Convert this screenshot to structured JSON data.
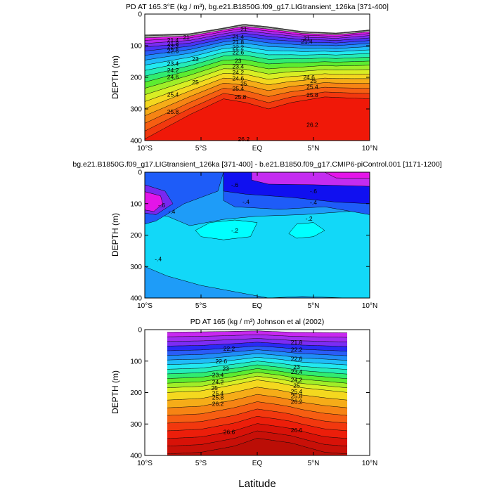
{
  "figure_xlabel": "Latitude",
  "chart_data": [
    {
      "type": "contour",
      "title": "PD AT 165.3°E (kg / m³), bg.e21.B1850G.f09_g17.LIGtransient_126ka [371-400]",
      "ylabel": "DEPTH (m)",
      "xlim": [
        -10,
        10
      ],
      "ylim": [
        0,
        400
      ],
      "data_xlim": [
        -10,
        10
      ],
      "x_ticks": [
        -10,
        -5,
        0,
        5,
        10
      ],
      "x_tick_labels": [
        "10°S",
        "5°S",
        "EQ",
        "5°N",
        "10°N"
      ],
      "y_ticks": [
        0,
        100,
        200,
        300,
        400
      ],
      "y_tick_labels": [
        "0",
        "100",
        "200",
        "300",
        "400"
      ],
      "fill_colors": [
        "#6e6e6e",
        "#a9a9a9",
        "#e015e8",
        "#b028f0",
        "#7c2cf4",
        "#4b33f5",
        "#2a5cf8",
        "#1f8cf8",
        "#1fbcf8",
        "#22e8f0",
        "#24ecb8",
        "#30ec70",
        "#5cec30",
        "#a0ee28",
        "#d8ee24",
        "#f4d81f",
        "#f6ac18",
        "#f68414",
        "#f65e12",
        "#f2380e",
        "#f01808"
      ],
      "contour_labels": [
        {
          "text": "21",
          "lat": -1.2,
          "depth": 48
        },
        {
          "text": "21",
          "lat": -6.3,
          "depth": 73
        },
        {
          "text": "21",
          "lat": 4.4,
          "depth": 77
        },
        {
          "text": "21.4",
          "lat": -1.7,
          "depth": 72
        },
        {
          "text": "21.4",
          "lat": -7.5,
          "depth": 82
        },
        {
          "text": "21.4",
          "lat": 4.4,
          "depth": 87
        },
        {
          "text": "21.8",
          "lat": -1.7,
          "depth": 89
        },
        {
          "text": "21.8",
          "lat": -7.5,
          "depth": 93
        },
        {
          "text": "22.2",
          "lat": -1.7,
          "depth": 105
        },
        {
          "text": "22.2",
          "lat": -7.5,
          "depth": 103
        },
        {
          "text": "22.6",
          "lat": -1.7,
          "depth": 121
        },
        {
          "text": "22.6",
          "lat": -7.5,
          "depth": 117
        },
        {
          "text": "23",
          "lat": -5.5,
          "depth": 142
        },
        {
          "text": "23",
          "lat": -1.7,
          "depth": 148
        },
        {
          "text": "23.4",
          "lat": -7.5,
          "depth": 157
        },
        {
          "text": "23.4",
          "lat": -1.7,
          "depth": 165
        },
        {
          "text": "24.2",
          "lat": -7.5,
          "depth": 178
        },
        {
          "text": "24.2",
          "lat": -1.7,
          "depth": 184
        },
        {
          "text": "24.6",
          "lat": -7.5,
          "depth": 199
        },
        {
          "text": "24.6",
          "lat": -1.7,
          "depth": 203
        },
        {
          "text": "24.6",
          "lat": 4.6,
          "depth": 200
        },
        {
          "text": "25",
          "lat": -5.5,
          "depth": 216
        },
        {
          "text": "25",
          "lat": -1.2,
          "depth": 220
        },
        {
          "text": "25",
          "lat": 5.0,
          "depth": 211
        },
        {
          "text": "25.4",
          "lat": -7.5,
          "depth": 254
        },
        {
          "text": "25.4",
          "lat": -1.7,
          "depth": 235
        },
        {
          "text": "25.4",
          "lat": 4.9,
          "depth": 230
        },
        {
          "text": "25.8",
          "lat": -7.5,
          "depth": 309
        },
        {
          "text": "25.8",
          "lat": -1.5,
          "depth": 262
        },
        {
          "text": "25.8",
          "lat": 4.9,
          "depth": 255
        },
        {
          "text": "26.2",
          "lat": -1.2,
          "depth": 395
        },
        {
          "text": "26.2",
          "lat": 4.9,
          "depth": 350
        }
      ]
    },
    {
      "type": "contour",
      "title": "bg.e21.B1850G.f09_g17.LIGtransient_126ka [371-400] - b.e21.B1850.f09_g17.CMIP6-piControl.001 [1171-1200]",
      "ylabel": "DEPTH (m)",
      "xlim": [
        -10,
        10
      ],
      "ylim": [
        0,
        400
      ],
      "data_xlim": [
        -10,
        10
      ],
      "x_ticks": [
        -10,
        -5,
        0,
        5,
        10
      ],
      "x_tick_labels": [
        "10°S",
        "5°S",
        "EQ",
        "5°N",
        "10°N"
      ],
      "y_ticks": [
        0,
        100,
        200,
        300,
        400
      ],
      "y_tick_labels": [
        "0",
        "100",
        "200",
        "300",
        "400"
      ],
      "fill_colors": [
        "#00ffff",
        "#12d8f8",
        "#1e9cf8",
        "#1e5cf8",
        "#1010f0",
        "#7828f0",
        "#c42cf0",
        "#e415e8"
      ],
      "contour_labels": [
        {
          "text": "-.6",
          "lat": -2.0,
          "depth": 40
        },
        {
          "text": "-.6",
          "lat": -8.5,
          "depth": 105
        },
        {
          "text": "-.6",
          "lat": 5.0,
          "depth": 60
        },
        {
          "text": "-.4",
          "lat": -1.0,
          "depth": 94
        },
        {
          "text": "-.4",
          "lat": -7.6,
          "depth": 125
        },
        {
          "text": "-.4",
          "lat": 5.0,
          "depth": 96
        },
        {
          "text": "-.2",
          "lat": -2.0,
          "depth": 185
        },
        {
          "text": "-.2",
          "lat": 4.6,
          "depth": 148
        },
        {
          "text": "-.4",
          "lat": -8.8,
          "depth": 276
        }
      ]
    },
    {
      "type": "contour",
      "title": "PD AT 165 (kg / m³) Johnson et al (2002)",
      "ylabel": "DEPTH (m)",
      "xlim": [
        -10,
        10
      ],
      "ylim": [
        0,
        400
      ],
      "data_xlim": [
        -8,
        8
      ],
      "x_ticks": [
        -10,
        -5,
        0,
        5,
        10
      ],
      "x_tick_labels": [
        "10°S",
        "5°S",
        "EQ",
        "5°N",
        "10°N"
      ],
      "y_ticks": [
        0,
        100,
        200,
        300,
        400
      ],
      "y_tick_labels": [
        "0",
        "100",
        "200",
        "300",
        "400"
      ],
      "fill_colors": [
        "#c828f0",
        "#a22cf2",
        "#7c2cf4",
        "#2a2af6",
        "#2a5cf8",
        "#1f8cf8",
        "#1fbcf8",
        "#22e8f0",
        "#24ecb8",
        "#30ec70",
        "#5cec30",
        "#a0ee28",
        "#d8ee24",
        "#f4d81f",
        "#f6ac18",
        "#f68414",
        "#f65e12",
        "#f2380e",
        "#ec1e0a",
        "#d81208",
        "#c81008",
        "#bb0e06"
      ],
      "contour_labels": [
        {
          "text": "21.8",
          "lat": 3.5,
          "depth": 40
        },
        {
          "text": "22.2",
          "lat": -2.5,
          "depth": 60
        },
        {
          "text": "22.2",
          "lat": 3.5,
          "depth": 64
        },
        {
          "text": "22.6",
          "lat": -3.2,
          "depth": 100
        },
        {
          "text": "22.6",
          "lat": 3.5,
          "depth": 93
        },
        {
          "text": "23",
          "lat": -2.8,
          "depth": 124
        },
        {
          "text": "23",
          "lat": 3.5,
          "depth": 118
        },
        {
          "text": "23.4",
          "lat": -3.5,
          "depth": 144
        },
        {
          "text": "23.4",
          "lat": 3.5,
          "depth": 134
        },
        {
          "text": "24.2",
          "lat": -3.5,
          "depth": 167
        },
        {
          "text": "24.2",
          "lat": 3.5,
          "depth": 160
        },
        {
          "text": "25",
          "lat": -3.8,
          "depth": 186
        },
        {
          "text": "25",
          "lat": 3.5,
          "depth": 178
        },
        {
          "text": "25.4",
          "lat": -3.5,
          "depth": 202
        },
        {
          "text": "25.4",
          "lat": 3.5,
          "depth": 197
        },
        {
          "text": "25.8",
          "lat": -3.5,
          "depth": 216
        },
        {
          "text": "25.8",
          "lat": 3.5,
          "depth": 211
        },
        {
          "text": "26.2",
          "lat": -3.5,
          "depth": 236
        },
        {
          "text": "26.2",
          "lat": 3.5,
          "depth": 229
        },
        {
          "text": "26.6",
          "lat": -2.5,
          "depth": 325
        },
        {
          "text": "26.6",
          "lat": 3.5,
          "depth": 320
        }
      ]
    }
  ]
}
